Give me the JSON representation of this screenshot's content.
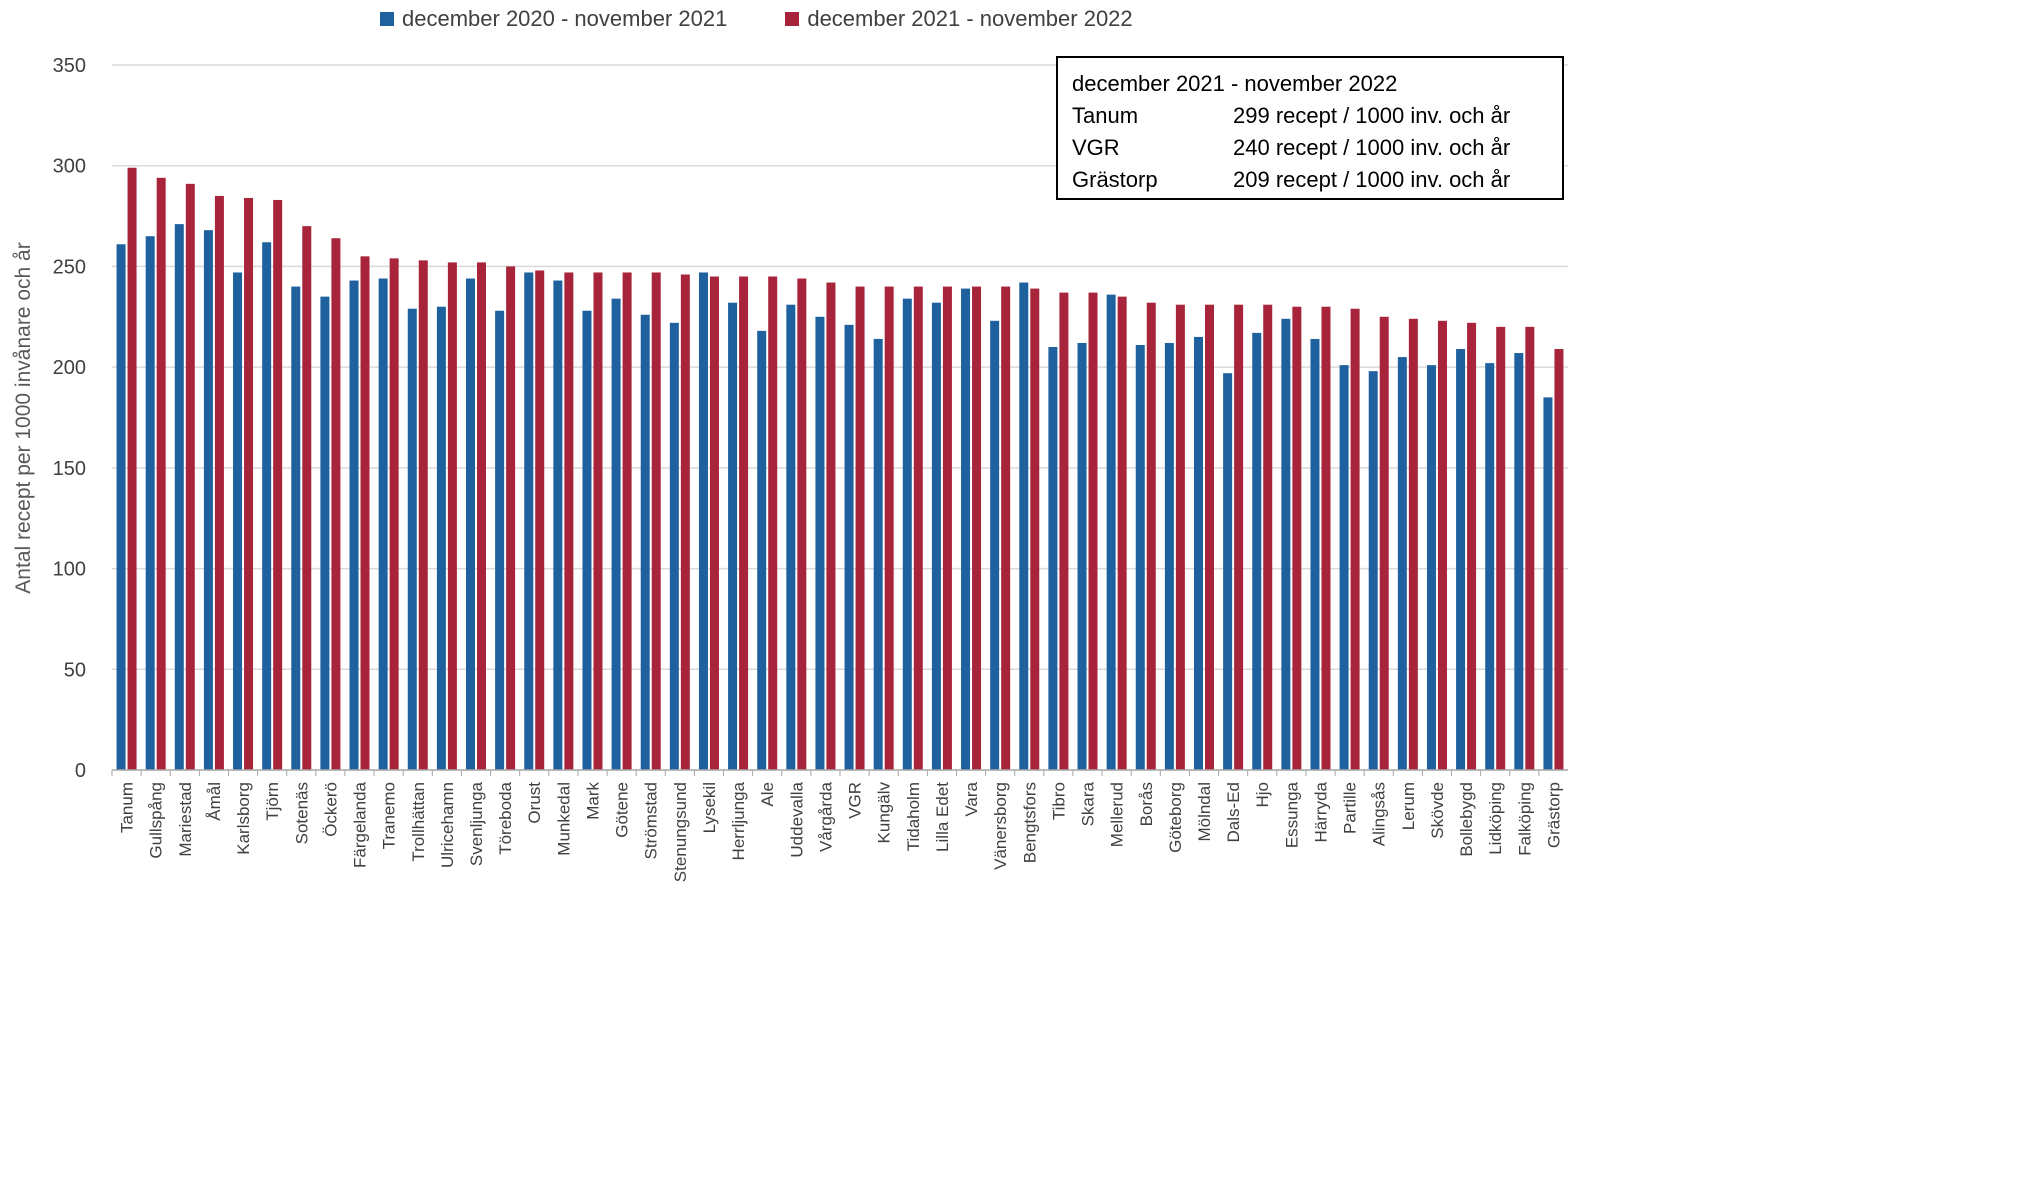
{
  "colors": {
    "series1": "#1F619E",
    "series2": "#A8243B",
    "grid": "#D9D9D9",
    "axis": "#A6A6A6"
  },
  "legend": [
    {
      "label": "december 2020 - november 2021",
      "color": "#1F619E"
    },
    {
      "label": "december 2021 - november 2022",
      "color": "#A8243B"
    }
  ],
  "infobox": {
    "title": "december 2021 - november 2022",
    "rows": [
      {
        "name": "Tanum",
        "value": "299 recept / 1000 inv. och år"
      },
      {
        "name": "VGR",
        "value": "240 recept / 1000 inv. och år"
      },
      {
        "name": "Grästorp",
        "value": "209 recept / 1000 inv. och år"
      }
    ]
  },
  "chart_data": {
    "type": "bar",
    "ylabel": "Antal recept per 1000 invånare och år",
    "xlabel": "",
    "ylim": [
      0,
      350
    ],
    "yticks": [
      0,
      50,
      100,
      150,
      200,
      250,
      300,
      350
    ],
    "grid": true,
    "legend_position": "top",
    "categories": [
      "Tanum",
      "Gullspång",
      "Mariestad",
      "Åmål",
      "Karlsborg",
      "Tjörn",
      "Sotenäs",
      "Öckerö",
      "Färgelanda",
      "Tranemo",
      "Trollhättan",
      "Ulricehamn",
      "Svenljunga",
      "Töreboda",
      "Orust",
      "Munkedal",
      "Mark",
      "Götene",
      "Strömstad",
      "Stenungsund",
      "Lysekil",
      "Herrljunga",
      "Ale",
      "Uddevalla",
      "Vårgårda",
      "VGR",
      "Kungälv",
      "Tidaholm",
      "Lilla Edet",
      "Vara",
      "Vänersborg",
      "Bengtsfors",
      "Tibro",
      "Skara",
      "Mellerud",
      "Borås",
      "Göteborg",
      "Mölndal",
      "Dals-Ed",
      "Hjo",
      "Essunga",
      "Härryda",
      "Partille",
      "Alingsås",
      "Lerum",
      "Skövde",
      "Bollebygd",
      "Lidköping",
      "Falköping",
      "Grästorp"
    ],
    "series": [
      {
        "name": "december 2020 - november 2021",
        "values": [
          261,
          265,
          271,
          268,
          247,
          262,
          240,
          235,
          243,
          244,
          229,
          230,
          244,
          228,
          247,
          243,
          228,
          234,
          226,
          222,
          247,
          232,
          218,
          231,
          225,
          221,
          214,
          234,
          232,
          239,
          223,
          242,
          210,
          212,
          236,
          211,
          212,
          215,
          197,
          217,
          224,
          214,
          201,
          198,
          205,
          201,
          209,
          202,
          207,
          185
        ]
      },
      {
        "name": "december 2021 - november 2022",
        "values": [
          299,
          294,
          291,
          285,
          284,
          283,
          270,
          264,
          255,
          254,
          253,
          252,
          252,
          250,
          248,
          247,
          247,
          247,
          247,
          246,
          245,
          245,
          245,
          244,
          242,
          240,
          240,
          240,
          240,
          240,
          240,
          239,
          237,
          237,
          235,
          232,
          231,
          231,
          231,
          231,
          230,
          230,
          229,
          225,
          224,
          223,
          222,
          220,
          220,
          209
        ]
      }
    ]
  }
}
